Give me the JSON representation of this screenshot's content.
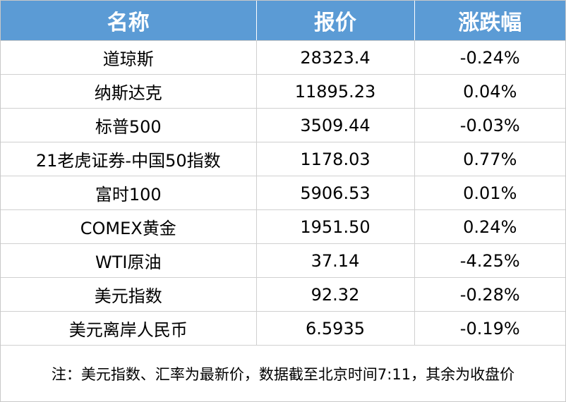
{
  "table": {
    "headers": [
      "名称",
      "报价",
      "涨跌幅"
    ],
    "rows": [
      {
        "name": "道琼斯",
        "price": "28323.4",
        "change": "-0.24%"
      },
      {
        "name": "纳斯达克",
        "price": "11895.23",
        "change": "0.04%"
      },
      {
        "name": "标普500",
        "price": "3509.44",
        "change": "-0.03%"
      },
      {
        "name": "21老虎证券-中国50指数",
        "price": "1178.03",
        "change": "0.77%"
      },
      {
        "name": "富时100",
        "price": "5906.53",
        "change": "0.01%"
      },
      {
        "name": "COMEX黄金",
        "price": "1951.50",
        "change": "0.24%"
      },
      {
        "name": "WTI原油",
        "price": "37.14",
        "change": "-4.25%"
      },
      {
        "name": "美元指数",
        "price": "92.32",
        "change": "-0.28%"
      },
      {
        "name": "美元离岸人民币",
        "price": "6.5935",
        "change": "-0.19%"
      }
    ]
  },
  "note": "注：美元指数、汇率为最新价，数据截至北京时间7:11，其余为收盘价",
  "colors": {
    "header_bg": "#5b9bd5",
    "header_text": "#ffffff",
    "grid": "#d0d0d0"
  }
}
